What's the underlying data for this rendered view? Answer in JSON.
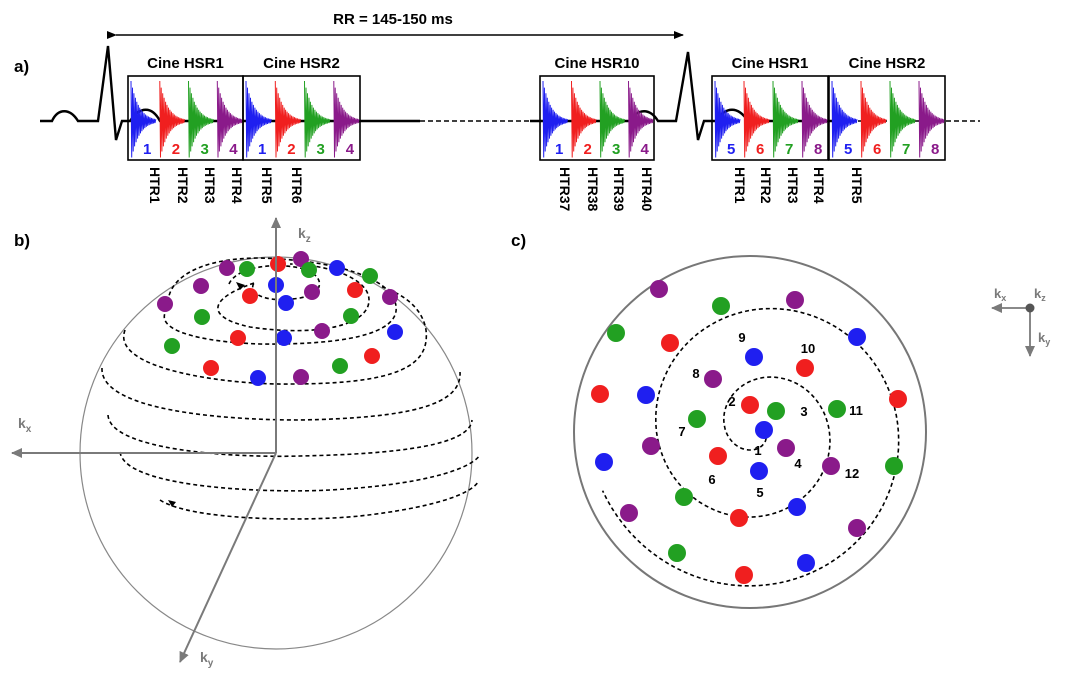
{
  "colors": {
    "blue": "#1f1ff0",
    "red": "#f01f1f",
    "green": "#22a022",
    "purple": "#8a1a8a",
    "black": "#000000",
    "axis": "#7a7a7a"
  },
  "panel_a": {
    "label": "a)",
    "rr_label": "RR = 145-150 ms",
    "boxes": [
      {
        "title": "Cine HSR1",
        "numbers": [
          "1",
          "2",
          "3",
          "4"
        ]
      },
      {
        "title": "Cine HSR2",
        "numbers": [
          "1",
          "2",
          "3",
          "4"
        ]
      },
      {
        "title": "Cine HSR10",
        "numbers": [
          "1",
          "2",
          "3",
          "4"
        ]
      },
      {
        "title": "Cine HSR1",
        "numbers": [
          "5",
          "6",
          "7",
          "8"
        ]
      },
      {
        "title": "Cine HSR2",
        "numbers": [
          "5",
          "6",
          "7",
          "8"
        ]
      }
    ],
    "htr_groups": [
      [
        "HTR1",
        "HTR2",
        "HTR3",
        "HTR4",
        "HTR5",
        "HTR6"
      ],
      [
        "HTR37",
        "HTR38",
        "HTR39",
        "HTR40"
      ],
      [
        "HTR1",
        "HTR2",
        "HTR3",
        "HTR4",
        "HTR5"
      ]
    ]
  },
  "panel_b": {
    "label": "b)",
    "axes": {
      "z": "k",
      "z_sub": "z",
      "x": "k",
      "x_sub": "x",
      "y": "k",
      "y_sub": "y"
    }
  },
  "panel_c": {
    "label": "c)",
    "numbers": [
      "1",
      "2",
      "3",
      "4",
      "5",
      "6",
      "7",
      "8",
      "9",
      "10",
      "11",
      "12"
    ],
    "axes": {
      "x": "k",
      "x_sub": "x",
      "z": "k",
      "z_sub": "z",
      "y": "k",
      "y_sub": "y"
    }
  }
}
